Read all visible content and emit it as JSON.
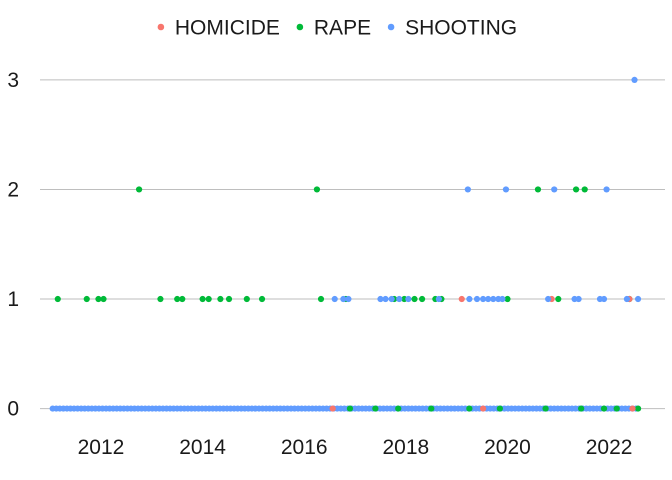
{
  "chart_data": {
    "type": "scatter",
    "title": "",
    "xlabel": "",
    "ylabel": "",
    "xlim": [
      2010.8,
      2023.1
    ],
    "ylim": [
      -0.15,
      3.2
    ],
    "x_ticks": [
      2012,
      2014,
      2016,
      2018,
      2020,
      2022
    ],
    "x_tick_labels": [
      "2012",
      "2014",
      "2016",
      "2018",
      "2020",
      "2022"
    ],
    "y_ticks": [
      0,
      1,
      2,
      3
    ],
    "y_tick_labels": [
      "0",
      "1",
      "2",
      "3"
    ],
    "grid": "horizontal",
    "legend": "top",
    "series": [
      {
        "name": "HOMICIDE",
        "color": "#F8766D",
        "points": [
          [
            2016.56,
            0
          ],
          [
            2019.1,
            1
          ],
          [
            2019.52,
            0
          ],
          [
            2020.87,
            1
          ],
          [
            2022.4,
            1
          ],
          [
            2022.46,
            0
          ]
        ]
      },
      {
        "name": "RAPE",
        "color": "#00BA38",
        "points": [
          [
            2011.15,
            1
          ],
          [
            2011.72,
            1
          ],
          [
            2011.95,
            1
          ],
          [
            2012.05,
            1
          ],
          [
            2012.75,
            2
          ],
          [
            2013.17,
            1
          ],
          [
            2013.5,
            1
          ],
          [
            2013.6,
            1
          ],
          [
            2014.0,
            1
          ],
          [
            2014.12,
            1
          ],
          [
            2014.35,
            1
          ],
          [
            2014.52,
            1
          ],
          [
            2014.87,
            1
          ],
          [
            2015.17,
            1
          ],
          [
            2016.25,
            2
          ],
          [
            2016.33,
            1
          ],
          [
            2016.82,
            1
          ],
          [
            2017.77,
            1
          ],
          [
            2017.97,
            1
          ],
          [
            2018.17,
            1
          ],
          [
            2018.32,
            1
          ],
          [
            2018.58,
            1
          ],
          [
            2018.7,
            1
          ],
          [
            2020.0,
            1
          ],
          [
            2020.6,
            2
          ],
          [
            2021.0,
            1
          ],
          [
            2021.35,
            2
          ],
          [
            2021.52,
            2
          ],
          [
            2022.4,
            1
          ],
          [
            2016.9,
            0
          ],
          [
            2017.4,
            0
          ],
          [
            2017.85,
            0
          ],
          [
            2018.5,
            0
          ],
          [
            2019.25,
            0
          ],
          [
            2019.85,
            0
          ],
          [
            2020.75,
            0
          ],
          [
            2021.45,
            0
          ],
          [
            2021.9,
            0
          ],
          [
            2022.15,
            0
          ],
          [
            2022.57,
            0
          ]
        ]
      },
      {
        "name": "SHOOTING",
        "color": "#619CFF",
        "points": [
          [
            2016.6,
            1
          ],
          [
            2016.77,
            1
          ],
          [
            2016.87,
            1
          ],
          [
            2017.5,
            1
          ],
          [
            2017.6,
            1
          ],
          [
            2017.72,
            1
          ],
          [
            2017.87,
            1
          ],
          [
            2018.05,
            1
          ],
          [
            2018.65,
            1
          ],
          [
            2019.25,
            1
          ],
          [
            2019.4,
            1
          ],
          [
            2019.52,
            1
          ],
          [
            2019.62,
            1
          ],
          [
            2019.72,
            1
          ],
          [
            2019.82,
            1
          ],
          [
            2019.9,
            1
          ],
          [
            2020.8,
            1
          ],
          [
            2021.32,
            1
          ],
          [
            2021.4,
            1
          ],
          [
            2021.82,
            1
          ],
          [
            2021.9,
            1
          ],
          [
            2022.35,
            1
          ],
          [
            2022.57,
            1
          ],
          [
            2019.22,
            2
          ],
          [
            2019.97,
            2
          ],
          [
            2020.92,
            2
          ],
          [
            2021.95,
            2
          ],
          [
            2022.5,
            3
          ]
        ],
        "zero_range": [
          2011.05,
          2022.55
        ],
        "zero_step": 0.07
      }
    ]
  }
}
